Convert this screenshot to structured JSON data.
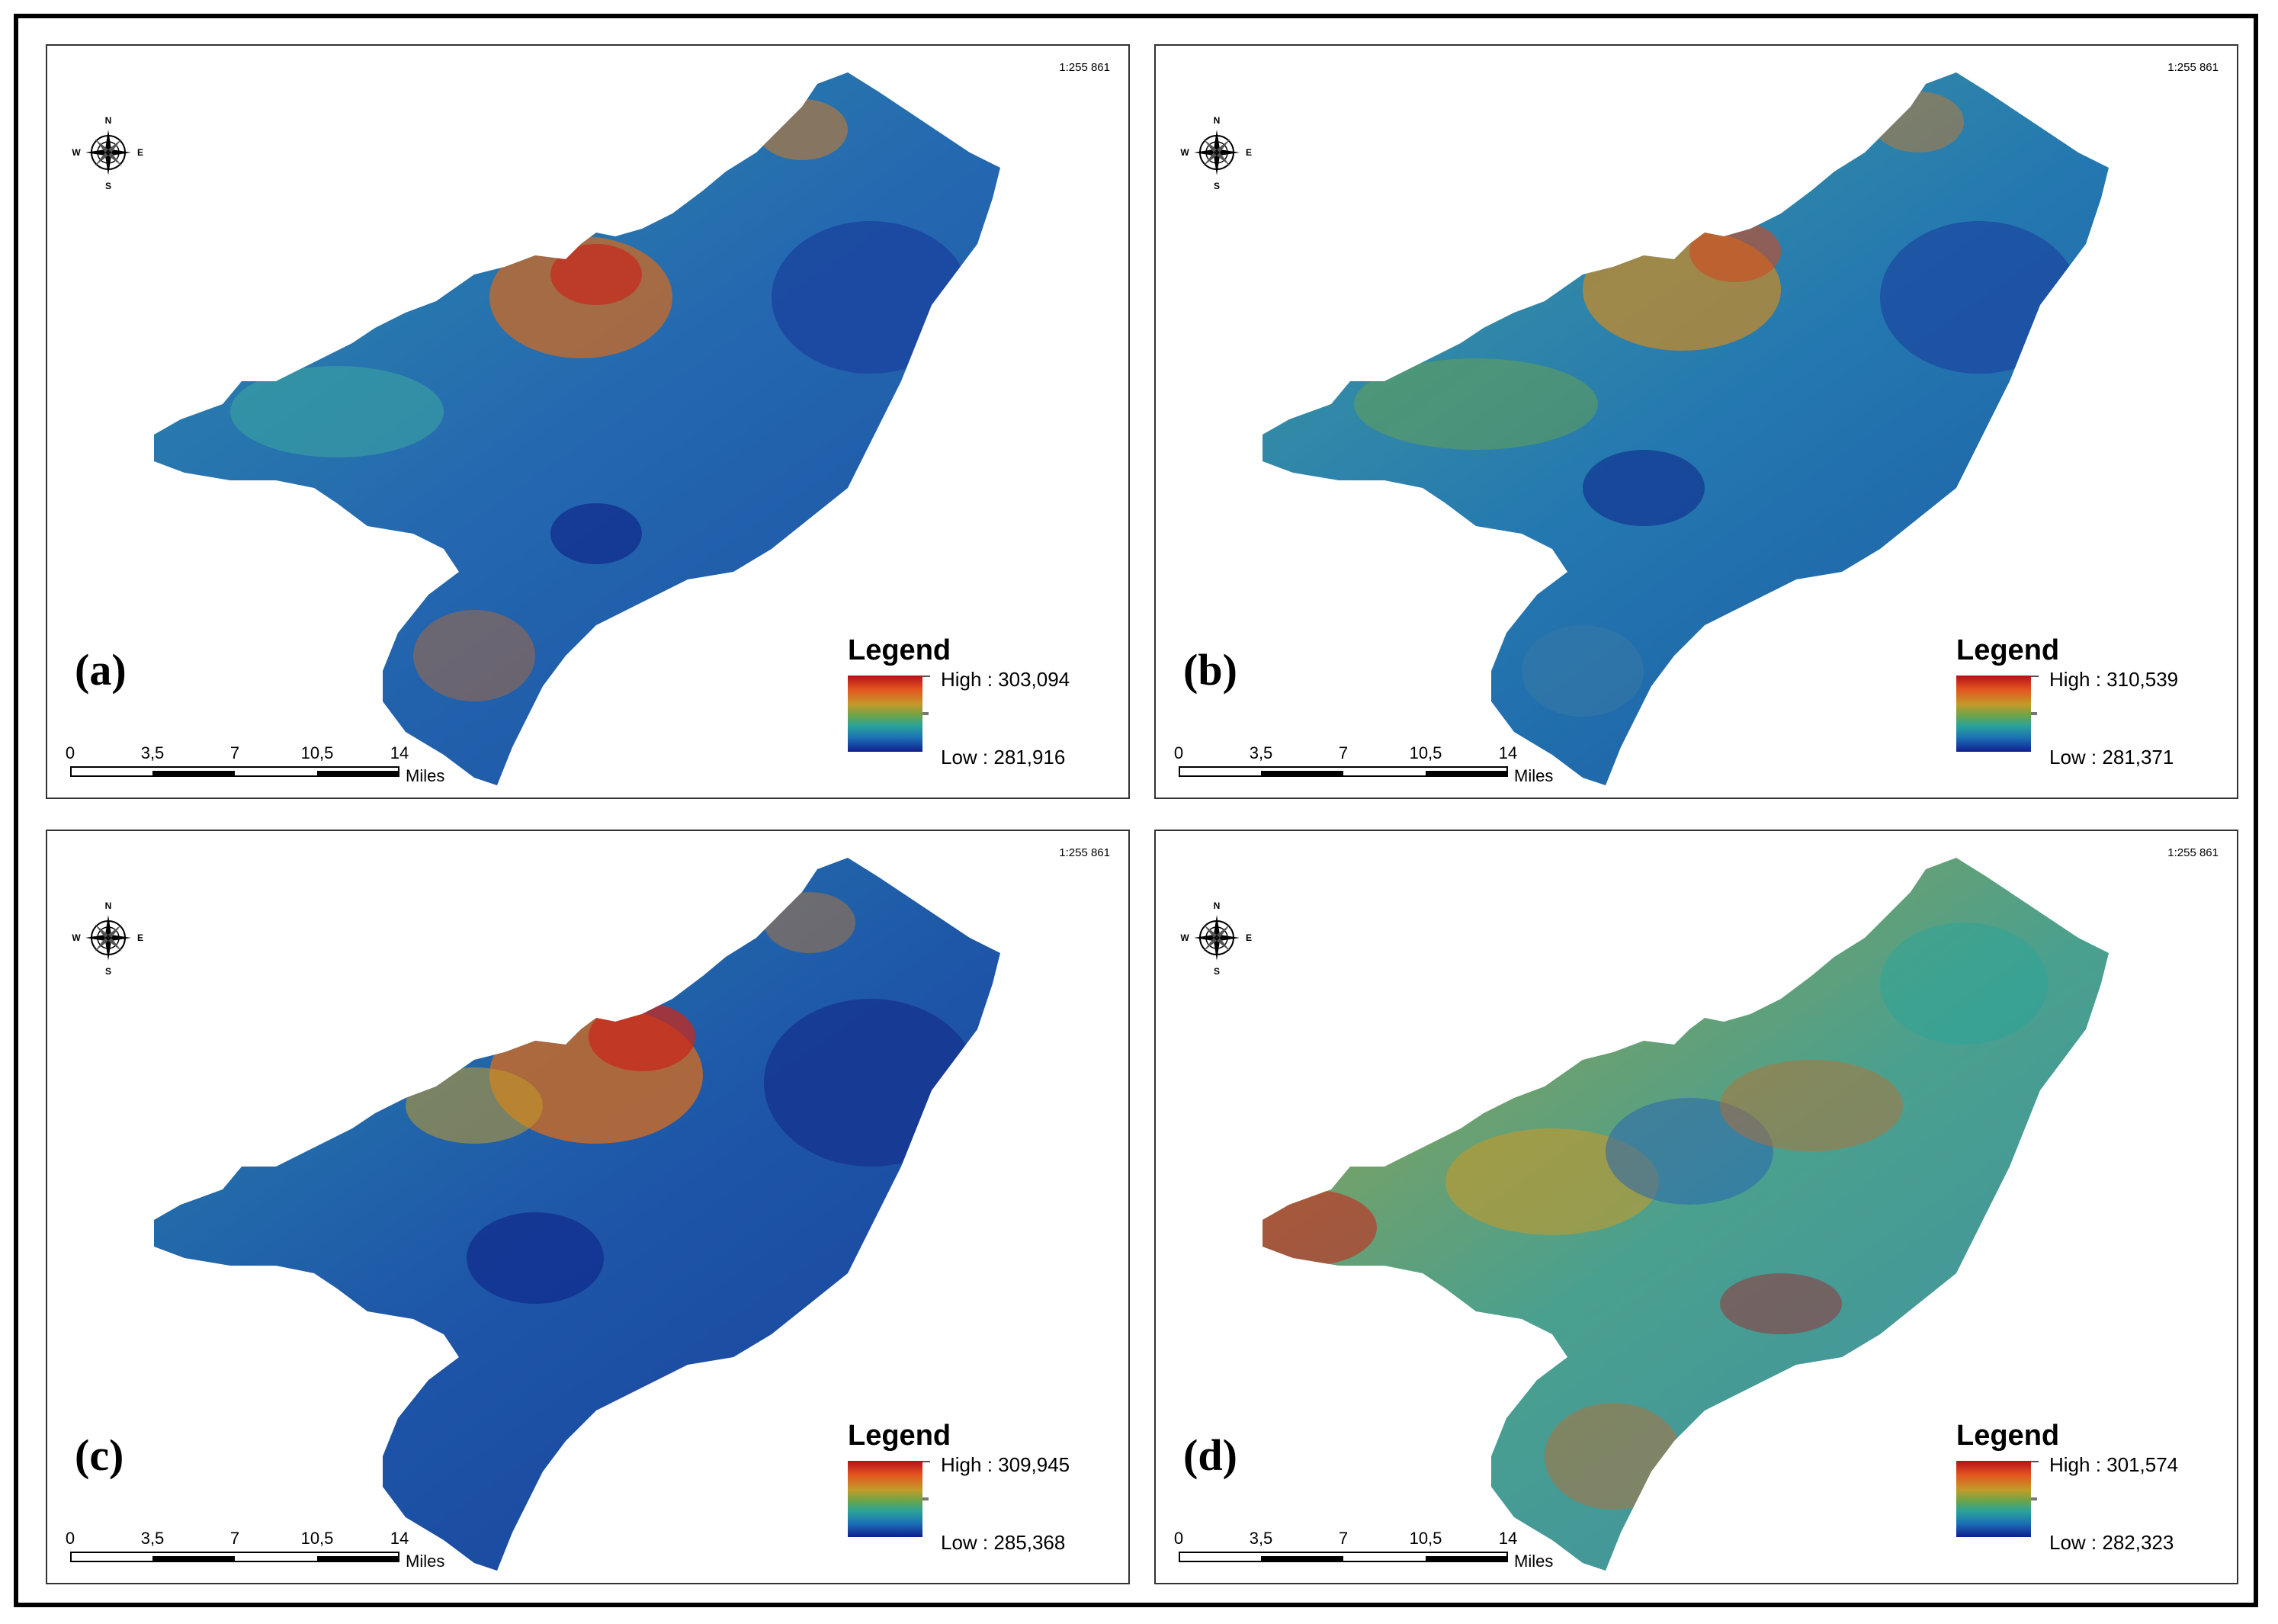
{
  "figure": {
    "panels": [
      {
        "id": "a",
        "label": "(a)",
        "scale_text": "1:255 861",
        "legend_title": "Legend",
        "legend_high": "High : 303,094",
        "legend_low": "Low : 281,916",
        "compass": {
          "n": "N",
          "s": "S",
          "e": "E",
          "w": "W"
        },
        "scalebar_ticks": [
          "0",
          "3,5",
          "7",
          "10,5",
          "14"
        ],
        "scalebar_unit": "Miles"
      },
      {
        "id": "b",
        "label": "(b)",
        "scale_text": "1:255 861",
        "legend_title": "Legend",
        "legend_high": "High : 310,539",
        "legend_low": "Low : 281,371",
        "compass": {
          "n": "N",
          "s": "S",
          "e": "E",
          "w": "W"
        },
        "scalebar_ticks": [
          "0",
          "3,5",
          "7",
          "10,5",
          "14"
        ],
        "scalebar_unit": "Miles"
      },
      {
        "id": "c",
        "label": "(c)",
        "scale_text": "1:255 861",
        "legend_title": "Legend",
        "legend_high": "High : 309,945",
        "legend_low": "Low : 285,368",
        "compass": {
          "n": "N",
          "s": "S",
          "e": "E",
          "w": "W"
        },
        "scalebar_ticks": [
          "0",
          "3,5",
          "7",
          "10,5",
          "14"
        ],
        "scalebar_unit": "Miles"
      },
      {
        "id": "d",
        "label": "(d)",
        "scale_text": "1:255 861",
        "legend_title": "Legend",
        "legend_high": "High : 301,574",
        "legend_low": "Low : 282,323",
        "compass": {
          "n": "N",
          "s": "S",
          "e": "E",
          "w": "W"
        },
        "scalebar_ticks": [
          "0",
          "3,5",
          "7",
          "10,5",
          "14"
        ],
        "scalebar_unit": "Miles"
      }
    ],
    "colors": {
      "ramp_high": "#b5101a",
      "ramp_mid_orange": "#e3541f",
      "ramp_yellow": "#c49a2a",
      "ramp_green": "#6ea447",
      "ramp_teal": "#2aa39a",
      "ramp_blue": "#1c70b5",
      "ramp_low": "#0f1f8f"
    }
  }
}
